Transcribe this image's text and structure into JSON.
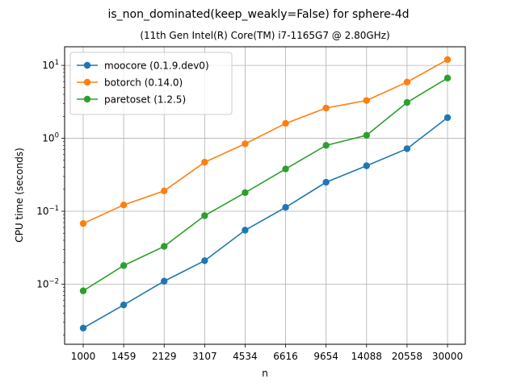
{
  "chart_data": {
    "type": "line",
    "title": "is_non_dominated(keep_weakly=False) for sphere-4d",
    "subtitle": "(11th Gen Intel(R) Core(TM) i7-1165G7 @ 2.80GHz)",
    "xlabel": "n",
    "ylabel": "CPU time (seconds)",
    "yscale": "log",
    "ylim": [
      0.0015,
      18
    ],
    "grid": true,
    "legend_position": "top-left",
    "categories": [
      "1000",
      "1459",
      "2129",
      "3107",
      "4534",
      "6616",
      "9654",
      "14088",
      "20558",
      "30000"
    ],
    "series": [
      {
        "name": "moocore (0.1.9.dev0)",
        "color": "#1f77b4",
        "values": [
          0.0025,
          0.0052,
          0.011,
          0.021,
          0.055,
          0.113,
          0.25,
          0.42,
          0.72,
          1.92
        ]
      },
      {
        "name": "botorch (0.14.0)",
        "color": "#ff7f0e",
        "values": [
          0.068,
          0.122,
          0.19,
          0.47,
          0.84,
          1.6,
          2.6,
          3.3,
          5.9,
          12.0
        ]
      },
      {
        "name": "paretoset (1.2.5)",
        "color": "#2ca02c",
        "values": [
          0.0081,
          0.018,
          0.033,
          0.087,
          0.18,
          0.38,
          0.8,
          1.1,
          3.1,
          6.7
        ]
      }
    ]
  }
}
